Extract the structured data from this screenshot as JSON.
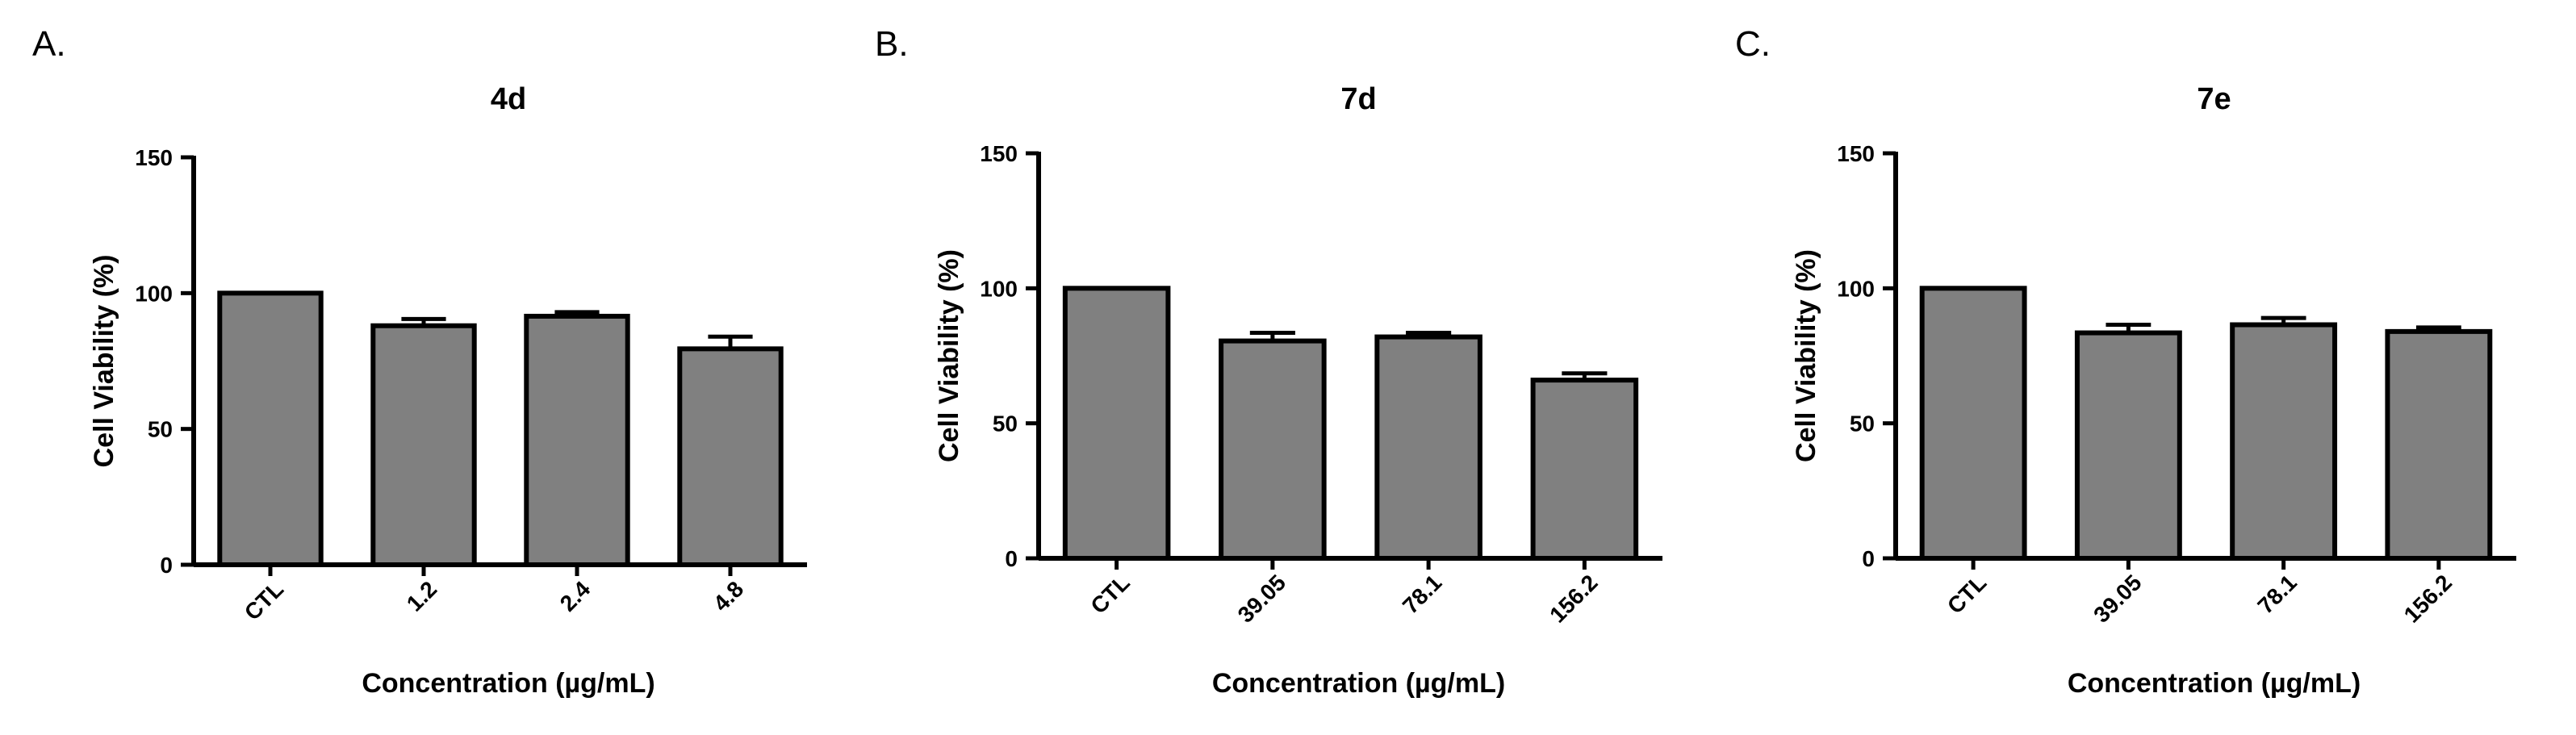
{
  "chart_data": [
    {
      "type": "bar",
      "panel": "A.",
      "title": "4d",
      "xlabel": "Concentration (µg/mL)",
      "ylabel": "Cell Viability (%)",
      "ylim": [
        0,
        150
      ],
      "yticks": [
        0,
        50,
        100,
        150
      ],
      "categories": [
        "CTL",
        "1.2",
        "2.4",
        "4.8"
      ],
      "values": [
        100,
        88,
        91.5,
        79.5
      ],
      "errors": [
        0,
        2.5,
        1.5,
        4.5
      ],
      "colors": {
        "bar": "#808080",
        "edge": "#000000"
      }
    },
    {
      "type": "bar",
      "panel": "B.",
      "title": "7d",
      "xlabel": "Concentration (µg/mL)",
      "ylabel": "Cell Viability (%)",
      "ylim": [
        0,
        150
      ],
      "yticks": [
        0,
        50,
        100,
        150
      ],
      "categories": [
        "CTL",
        "39.05",
        "78.1",
        "156.2"
      ],
      "values": [
        100,
        80.5,
        82,
        66
      ],
      "errors": [
        0,
        3,
        1.5,
        2.5
      ],
      "colors": {
        "bar": "#808080",
        "edge": "#000000"
      }
    },
    {
      "type": "bar",
      "panel": "C.",
      "title": "7e",
      "xlabel": "Concentration (µg/mL)",
      "ylabel": "Cell Viability (%)",
      "ylim": [
        0,
        150
      ],
      "yticks": [
        0,
        50,
        100,
        150
      ],
      "categories": [
        "CTL",
        "39.05",
        "78.1",
        "156.2"
      ],
      "values": [
        100,
        83.5,
        86.5,
        84
      ],
      "errors": [
        0,
        3,
        2.5,
        1.5
      ],
      "colors": {
        "bar": "#808080",
        "edge": "#000000"
      }
    }
  ]
}
